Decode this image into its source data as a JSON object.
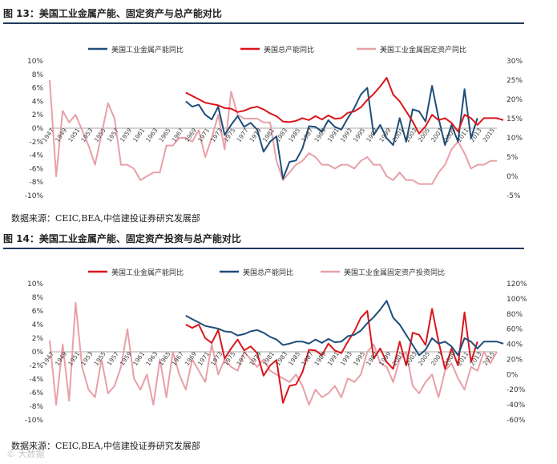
{
  "figures": [
    {
      "title": "图 13：美国工业金属产能、固定资产与总产能对比",
      "source": "数据来源：CEIC,BEA,中信建投证券研究发展部",
      "chart_data": {
        "type": "line",
        "left_axis": {
          "ticks": [
            "10%",
            "8%",
            "6%",
            "4%",
            "2%",
            "0%",
            "-2%",
            "-4%",
            "-6%",
            "-8%",
            "-10%"
          ],
          "range": [
            -10,
            10
          ]
        },
        "right_axis": {
          "ticks": [
            "30%",
            "25%",
            "20%",
            "15%",
            "10%",
            "5%",
            "0%",
            "-5%"
          ],
          "range": [
            -5,
            30
          ]
        },
        "legend": [
          {
            "name": "美国工业金属产能同比",
            "color": "#1f4e79"
          },
          {
            "name": "美国总产能同比",
            "color": "#d9161c"
          },
          {
            "name": "美国工业金属固定资产同比",
            "color": "#e8a0a8"
          }
        ],
        "x_labels": [
          "1947",
          "1949",
          "1951",
          "1953",
          "1955",
          "1957",
          "1959",
          "1961",
          "1963",
          "1965",
          "1967",
          "1969",
          "1971",
          "1973",
          "1975",
          "1977",
          "1979",
          "1981",
          "1983",
          "1985",
          "1987",
          "1989",
          "1991",
          "1993",
          "1995",
          "1997",
          "1999",
          "2001",
          "2003",
          "2005",
          "2007",
          "2009",
          "2011",
          "2013",
          "2015"
        ],
        "x_start": 1947,
        "x_end": 2016,
        "series": [
          {
            "name": "美国工业金属产能同比",
            "axis": "left",
            "color": "#1f4e79",
            "x_start": 1968,
            "values": [
              4,
              3.2,
              3.5,
              2,
              1.3,
              3.2,
              -1,
              0.5,
              1.8,
              0.2,
              0.8,
              -0.2,
              -3.5,
              -2,
              -1.2,
              -7.5,
              -5,
              -4.8,
              -3,
              0.3,
              0.2,
              -0.5,
              1.2,
              0.2,
              -0.2,
              1.5,
              3,
              5,
              6,
              -1,
              0.5,
              -1.5,
              -2.5,
              1.5,
              -2,
              2.8,
              2.5,
              1,
              6.3,
              1.5,
              -2.5,
              0.5,
              -2,
              5.8,
              -1.5,
              1.5
            ]
          },
          {
            "name": "美国总产能同比",
            "axis": "left",
            "color": "#d9161c",
            "x_start": 1968,
            "values": [
              5.3,
              4.8,
              4.3,
              3.8,
              3.6,
              3.4,
              3,
              2.9,
              2.4,
              2.6,
              3,
              3.2,
              2.8,
              2.2,
              1.8,
              1,
              0.9,
              1.1,
              1.5,
              1.2,
              1.8,
              1.3,
              1.9,
              1.4,
              1.5,
              2.3,
              2.5,
              3.1,
              4.2,
              5.1,
              6.2,
              7.5,
              5,
              4,
              2.5,
              1,
              -0.8,
              0.3,
              2,
              1.2,
              1.5,
              0.8,
              -0.5,
              2,
              1.5,
              0.5,
              1.5,
              1.5,
              1.5,
              1.2
            ]
          },
          {
            "name": "美国工业金属固定资产同比",
            "axis": "right",
            "color": "#e8a0a8",
            "x_start": 1947,
            "values": [
              25,
              0,
              17,
              14,
              16,
              12,
              8,
              3,
              11,
              19,
              15,
              3,
              3,
              2,
              -1,
              0,
              1,
              1,
              8,
              8,
              10,
              10,
              9,
              12,
              5,
              10,
              16,
              7,
              22,
              16,
              15,
              15,
              15,
              14,
              14,
              4,
              -1,
              1,
              3,
              4,
              6,
              5,
              3,
              3,
              2,
              3,
              3,
              2,
              4,
              5,
              3,
              3,
              0,
              -1,
              1,
              -1,
              -1,
              -2,
              -2,
              -2,
              1,
              3,
              7,
              9,
              6,
              2,
              3,
              3,
              4,
              4
            ]
          }
        ]
      }
    },
    {
      "title": "图 14：美国工业金属产能、固定资产投资与总产能对比",
      "source": "数据来源：CEIC,BEA,中信建投证券研究发展部",
      "chart_data": {
        "type": "line",
        "left_axis": {
          "ticks": [
            "10%",
            "8%",
            "6%",
            "4%",
            "2%",
            "0%",
            "-2%",
            "-4%",
            "-6%",
            "-8%",
            "-10%"
          ],
          "range": [
            -10,
            10
          ]
        },
        "right_axis": {
          "ticks": [
            "120%",
            "100%",
            "80%",
            "60%",
            "40%",
            "20%",
            "0%",
            "-20%",
            "-40%",
            "-60%"
          ],
          "range": [
            -60,
            120
          ]
        },
        "legend": [
          {
            "name": "美国工业金属产能同比",
            "color": "#d9161c"
          },
          {
            "name": "美国总产能同比",
            "color": "#1f4e79"
          },
          {
            "name": "美国工业金属固定资产投资同比",
            "color": "#e8a0a8"
          }
        ],
        "x_labels": [
          "1947",
          "1949",
          "1951",
          "1953",
          "1955",
          "1957",
          "1959",
          "1961",
          "1963",
          "1965",
          "1967",
          "1969",
          "1971",
          "1973",
          "1975",
          "1977",
          "1979",
          "1981",
          "1983",
          "1985",
          "1987",
          "1989",
          "1991",
          "1993",
          "1995",
          "1997",
          "1999",
          "2001",
          "2003",
          "2005",
          "2007",
          "2009",
          "2011",
          "2013",
          "2015"
        ],
        "x_start": 1947,
        "x_end": 2016,
        "series": [
          {
            "name": "美国工业金属产能同比",
            "axis": "left",
            "color": "#d9161c",
            "x_start": 1968,
            "values": [
              4,
              3.5,
              4,
              2,
              1.3,
              3.2,
              -1,
              0.5,
              1.8,
              0.2,
              0.8,
              -0.2,
              -3.5,
              -2,
              -1.2,
              -7.5,
              -5,
              -4.8,
              -3,
              0.3,
              0.2,
              -0.5,
              1.2,
              0.2,
              -0.2,
              1.5,
              3,
              5,
              6,
              -1,
              0.5,
              -1.5,
              -2.5,
              1.5,
              -2,
              2.8,
              2.5,
              1,
              6.3,
              1.5,
              -2.5,
              0.5,
              -2,
              5.8,
              -1.5,
              1.5
            ]
          },
          {
            "name": "美国总产能同比",
            "axis": "left",
            "color": "#1f4e79",
            "x_start": 1968,
            "values": [
              5.3,
              4.8,
              4.3,
              3.8,
              3.6,
              3.4,
              3,
              2.9,
              2.4,
              2.6,
              3,
              3.2,
              2.8,
              2.2,
              1.8,
              1,
              1.2,
              1.5,
              1.5,
              1.2,
              1.8,
              1.3,
              1.9,
              1.4,
              1.5,
              2.3,
              2.5,
              3.1,
              4.2,
              5.1,
              6.2,
              7.5,
              5,
              4,
              2.5,
              1,
              -0.5,
              0.3,
              2,
              1.2,
              1.5,
              0.8,
              -0.5,
              2,
              1.5,
              0.5,
              1.5,
              1.5,
              1.5,
              1.2
            ]
          },
          {
            "name": "美国工业金属固定资产投资同比",
            "axis": "right",
            "color": "#e8a0a8",
            "x_start": 1947,
            "values": [
              45,
              -40,
              40,
              -35,
              95,
              10,
              -20,
              -30,
              20,
              -25,
              -15,
              10,
              60,
              -5,
              -20,
              0,
              -40,
              20,
              -30,
              30,
              0,
              -20,
              20,
              5,
              -10,
              40,
              0,
              20,
              10,
              5,
              30,
              20,
              10,
              20,
              5,
              0,
              -5,
              -10,
              0,
              -15,
              -40,
              -20,
              -30,
              -25,
              -15,
              -30,
              -5,
              -10,
              0,
              30,
              40,
              15,
              10,
              -10,
              20,
              30,
              -15,
              -25,
              -10,
              0,
              -30,
              5,
              15,
              -5,
              -20,
              10,
              5,
              30,
              15,
              30
            ]
          }
        ]
      }
    }
  ],
  "watermark": "© 大数据"
}
